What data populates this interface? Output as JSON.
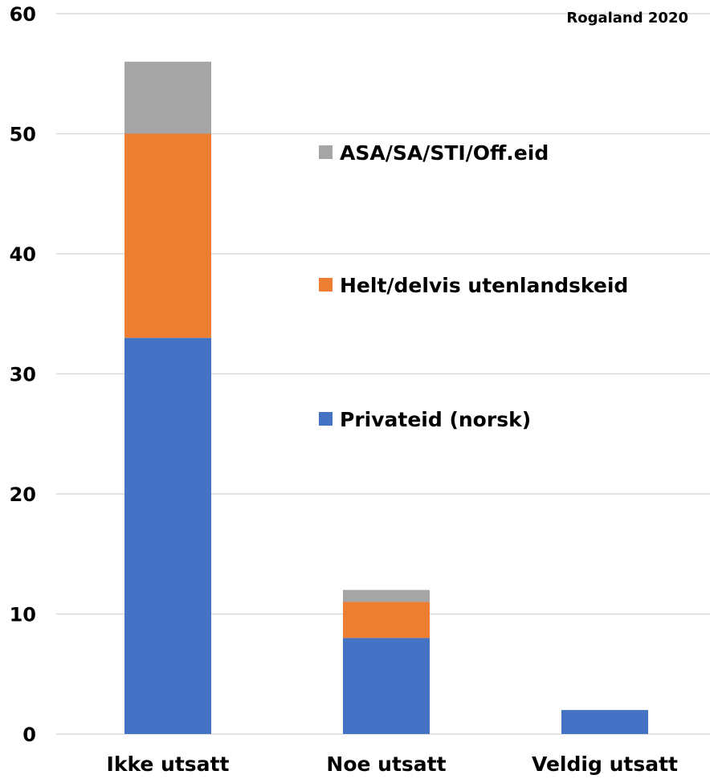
{
  "chart_data": {
    "type": "bar",
    "stacked": true,
    "categories": [
      "Ikke utsatt",
      "Noe utsatt",
      "Veldig utsatt"
    ],
    "series": [
      {
        "name": "Privateid (norsk)",
        "values": [
          33,
          8,
          2
        ],
        "color": "#4472C4"
      },
      {
        "name": "Helt/delvis utenlandskeid",
        "values": [
          17,
          3,
          0
        ],
        "color": "#ED7D31"
      },
      {
        "name": "ASA/SA/STI/Off.eid",
        "values": [
          6,
          1,
          0
        ],
        "color": "#A5A5A5"
      }
    ],
    "title": "",
    "annotation": "Rogaland 2020",
    "xlabel": "",
    "ylabel": "",
    "ylim": [
      0,
      60
    ],
    "yticks": [
      0,
      10,
      20,
      30,
      40,
      50,
      60
    ],
    "grid": true,
    "gridline_color": "#D9D9D9",
    "legend": {
      "placement": "right-of-first-bar",
      "order": [
        "ASA/SA/STI/Off.eid",
        "Helt/delvis utenlandskeid",
        "Privateid (norsk)"
      ]
    }
  }
}
